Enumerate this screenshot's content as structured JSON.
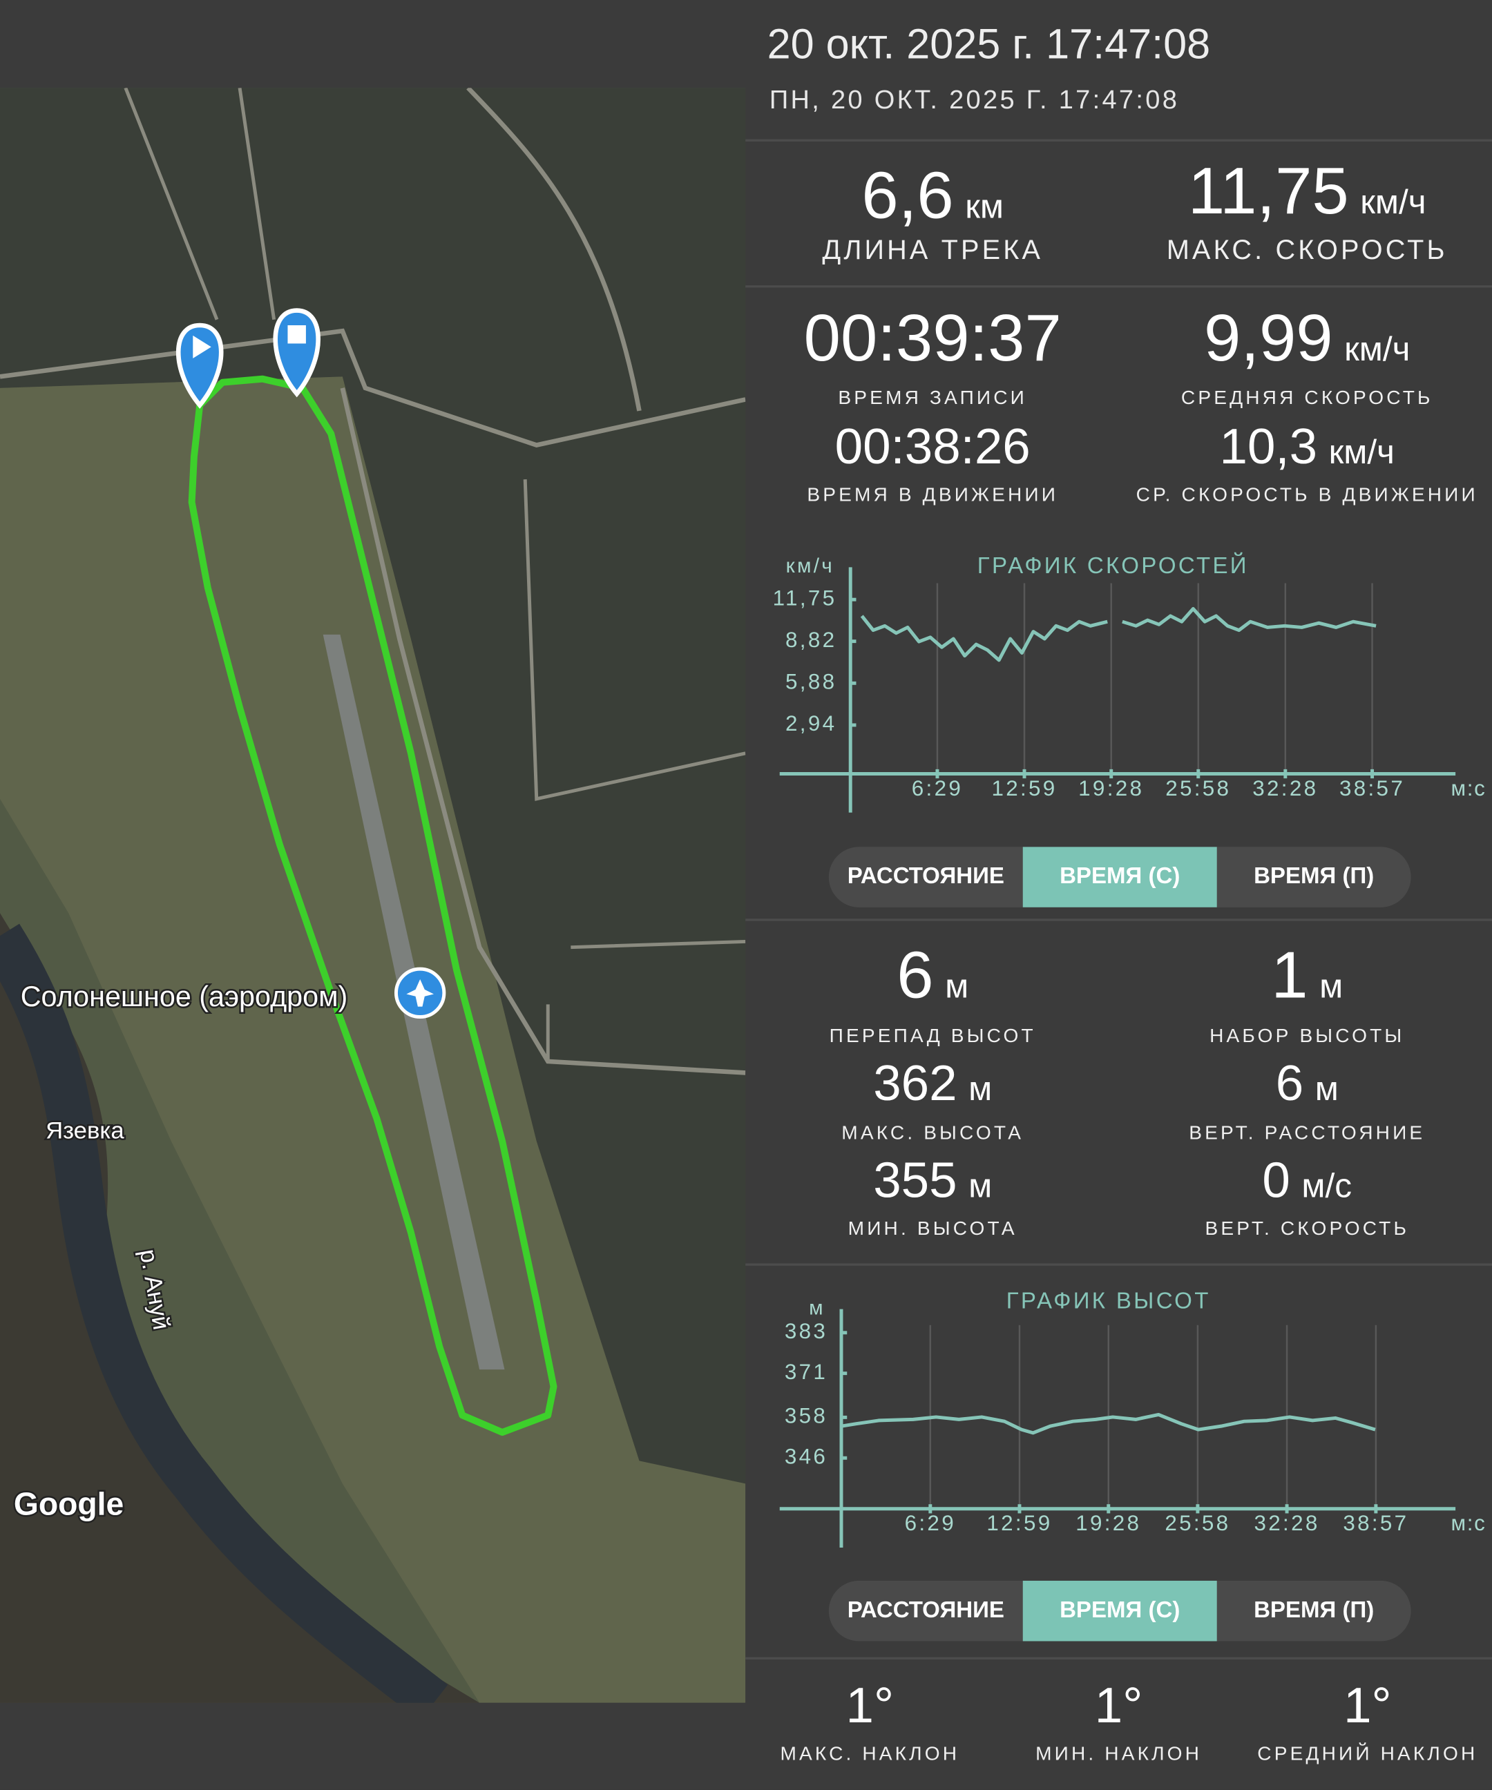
{
  "header": {
    "title": "20 окт. 2025 г. 17:47:08",
    "subtitle": "ПН, 20 ОКТ. 2025 Г. 17:47:08"
  },
  "map": {
    "labels": {
      "place": "Солонешное (аэродром)",
      "village": "Язевка",
      "river": "р. Ануй",
      "attribution": "Google"
    }
  },
  "summary": [
    {
      "value": "6,6",
      "unit": "км",
      "label": "ДЛИНА ТРЕКА"
    },
    {
      "value": "11,75",
      "unit": "км/ч",
      "label": "МАКС. СКОРОСТЬ"
    },
    {
      "value": "00:39:37",
      "label": "ВРЕМЯ ЗАПИСИ"
    },
    {
      "value": "9,99",
      "unit": "км/ч",
      "label": "СРЕДНЯЯ СКОРОСТЬ"
    },
    {
      "value": "00:38:26",
      "label": "ВРЕМЯ В ДВИЖЕНИИ"
    },
    {
      "value": "10,3",
      "unit": "км/ч",
      "label": "СР. СКОРОСТЬ В ДВИЖЕНИИ"
    }
  ],
  "speed_chart": {
    "type": "line",
    "title": "ГРАФИК СКОРОСТЕЙ",
    "y_unit": "км/ч",
    "x_unit": "м:с",
    "x": [
      51,
      102,
      154,
      205,
      256,
      307,
      358,
      409,
      461,
      512,
      563,
      614,
      665,
      716,
      768,
      819,
      870,
      921,
      972,
      1024,
      1075,
      1151,
      1180,
      1218,
      1279,
      1331,
      1382,
      1433,
      1484,
      1535,
      1587,
      1638,
      1689,
      1740,
      1791,
      1868,
      1945,
      2021,
      2098,
      2175,
      2252,
      2354
    ],
    "series": [
      {
        "color": "#86c5b8",
        "values": [
          10.6,
          9.6,
          9.9,
          9.4,
          9.8,
          8.8,
          9.1,
          8.4,
          9.0,
          7.8,
          8.6,
          8.2,
          7.5,
          9.0,
          8.0,
          9.5,
          9.0,
          9.9,
          9.6,
          10.2,
          9.9,
          10.2,
          null,
          10.2,
          9.9,
          10.3,
          10.0,
          10.6,
          10.2,
          11.1,
          10.2,
          10.6,
          9.9,
          9.6,
          10.2,
          9.8,
          9.9,
          9.8,
          10.1,
          9.8,
          10.2,
          9.9
        ]
      }
    ],
    "xlim": [
      0,
      2710
    ],
    "ylim": [
      0,
      14.5
    ],
    "xticks": [
      {
        "value": 389,
        "label": "6:29"
      },
      {
        "value": 779,
        "label": "12:59"
      },
      {
        "value": 1168,
        "label": "19:28"
      },
      {
        "value": 1558,
        "label": "25:58"
      },
      {
        "value": 1948,
        "label": "32:28"
      },
      {
        "value": 2337,
        "label": "38:57"
      }
    ],
    "yticks": [
      {
        "value": 11.75,
        "label": "11,75"
      },
      {
        "value": 8.82,
        "label": "8,82"
      },
      {
        "value": 5.88,
        "label": "5,88"
      },
      {
        "value": 2.94,
        "label": "2,94"
      }
    ],
    "grid": true
  },
  "speed_toggle": {
    "options": [
      "РАССТОЯНИЕ",
      "ВРЕМЯ (С)",
      "ВРЕМЯ (П)"
    ],
    "selected": 1
  },
  "elevation_stats": [
    {
      "value": "6",
      "unit": "м",
      "label": "ПЕРЕПАД ВЫСОТ"
    },
    {
      "value": "1",
      "unit": "м",
      "label": "НАБОР ВЫСОТЫ"
    },
    {
      "value": "362",
      "unit": "м",
      "label": "МАКС. ВЫСОТА"
    },
    {
      "value": "6",
      "unit": "м",
      "label": "ВЕРТ. РАССТОЯНИЕ"
    },
    {
      "value": "355",
      "unit": "м",
      "label": "МИН. ВЫСОТА"
    },
    {
      "value": "0",
      "unit": "м/с",
      "label": "ВЕРТ. СКОРОСТЬ"
    }
  ],
  "elevation_chart": {
    "type": "line",
    "title": "ГРАФИК ВЫСОТ",
    "y_unit": "м",
    "x_unit": "м:с",
    "x": [
      0,
      65,
      165,
      314,
      414,
      514,
      614,
      713,
      788,
      838,
      913,
      1012,
      1112,
      1187,
      1287,
      1387,
      1486,
      1561,
      1661,
      1761,
      1860,
      1960,
      2060,
      2160,
      2234,
      2334
    ],
    "series": [
      {
        "color": "#86c5b8",
        "values": [
          355.4,
          356.1,
          357.1,
          357.4,
          358.1,
          357.4,
          358.1,
          356.8,
          354.4,
          353.4,
          355.4,
          356.8,
          357.4,
          358.1,
          357.4,
          358.8,
          356.1,
          354.4,
          355.4,
          356.8,
          357.1,
          358.1,
          357.1,
          357.8,
          356.4,
          354.4
        ]
      }
    ],
    "xlim": [
      0,
      2685
    ],
    "ylim": [
      331,
      392
    ],
    "xticks": [
      {
        "value": 389,
        "label": "6:29"
      },
      {
        "value": 779,
        "label": "12:59"
      },
      {
        "value": 1168,
        "label": "19:28"
      },
      {
        "value": 1558,
        "label": "25:58"
      },
      {
        "value": 1948,
        "label": "32:28"
      },
      {
        "value": 2337,
        "label": "38:57"
      }
    ],
    "yticks": [
      383,
      371,
      358,
      346
    ],
    "grid": true
  },
  "elevation_toggle": {
    "options": [
      "РАССТОЯНИЕ",
      "ВРЕМЯ (С)",
      "ВРЕМЯ (П)"
    ],
    "selected": 1
  },
  "incline_stats": [
    {
      "value": "1°",
      "label": "МАКС. НАКЛОН"
    },
    {
      "value": "1°",
      "label": "МИН. НАКЛОН"
    },
    {
      "value": "1°",
      "label": "СРЕДНИЙ НАКЛОН"
    }
  ]
}
